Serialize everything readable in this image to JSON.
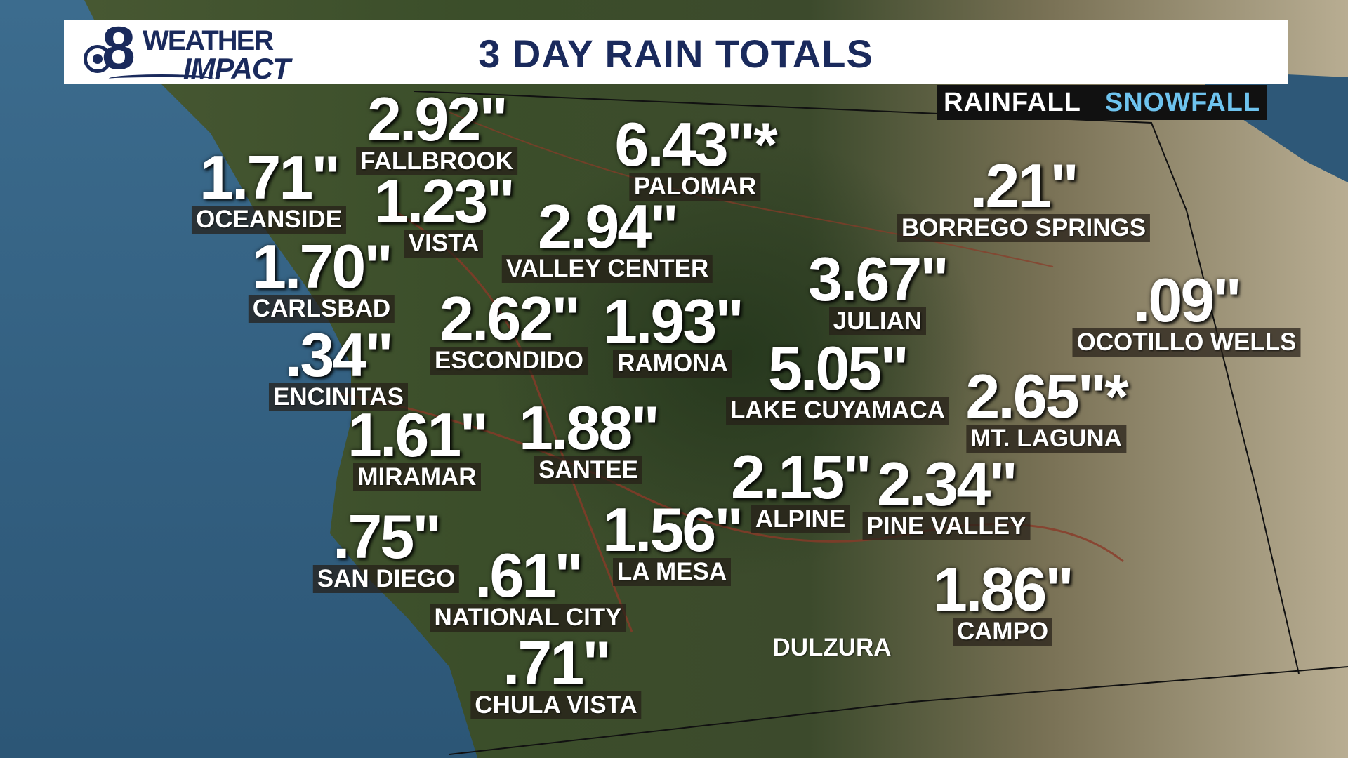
{
  "header": {
    "logo_number": "8",
    "logo_top": "WEATHER",
    "logo_bottom": "IMPACT",
    "title": "3 DAY RAIN TOTALS"
  },
  "legend": {
    "rainfall": "RAINFALL",
    "snowfall": "SNOWFALL"
  },
  "colors": {
    "header_text": "#1a2a5c",
    "snowfall_label": "#6ec3ee",
    "header_bg": "#ffffff"
  },
  "stations": [
    {
      "id": "fallbrook",
      "value": "2.92\"",
      "name": "FALLBROOK"
    },
    {
      "id": "oceanside",
      "value": "1.71\"",
      "name": "OCEANSIDE"
    },
    {
      "id": "vista",
      "value": "1.23\"",
      "name": "VISTA"
    },
    {
      "id": "palomar",
      "value": "6.43\"*",
      "name": "PALOMAR"
    },
    {
      "id": "valley-center",
      "value": "2.94\"",
      "name": "VALLEY CENTER"
    },
    {
      "id": "borrego-springs",
      "value": ".21\"",
      "name": "BORREGO SPRINGS"
    },
    {
      "id": "carlsbad",
      "value": "1.70\"",
      "name": "CARLSBAD"
    },
    {
      "id": "julian",
      "value": "3.67\"",
      "name": "JULIAN"
    },
    {
      "id": "ocotillo-wells",
      "value": ".09\"",
      "name": "OCOTILLO WELLS"
    },
    {
      "id": "escondido",
      "value": "2.62\"",
      "name": "ESCONDIDO"
    },
    {
      "id": "ramona",
      "value": "1.93\"",
      "name": "RAMONA"
    },
    {
      "id": "encinitas",
      "value": ".34\"",
      "name": "ENCINITAS"
    },
    {
      "id": "lake-cuyamaca",
      "value": "5.05\"",
      "name": "LAKE CUYAMACA"
    },
    {
      "id": "mt-laguna",
      "value": "2.65\"*",
      "name": "MT. LAGUNA"
    },
    {
      "id": "miramar",
      "value": "1.61\"",
      "name": "MIRAMAR"
    },
    {
      "id": "santee",
      "value": "1.88\"",
      "name": "SANTEE"
    },
    {
      "id": "alpine",
      "value": "2.15\"",
      "name": "ALPINE"
    },
    {
      "id": "pine-valley",
      "value": "2.34\"",
      "name": "PINE VALLEY"
    },
    {
      "id": "san-diego",
      "value": ".75\"",
      "name": "SAN DIEGO"
    },
    {
      "id": "la-mesa",
      "value": "1.56\"",
      "name": "LA MESA"
    },
    {
      "id": "national-city",
      "value": ".61\"",
      "name": "NATIONAL CITY"
    },
    {
      "id": "campo",
      "value": "1.86\"",
      "name": "CAMPO"
    },
    {
      "id": "dulzura",
      "value": "",
      "name": "DULZURA"
    },
    {
      "id": "chula-vista",
      "value": ".71\"",
      "name": "CHULA VISTA"
    }
  ]
}
